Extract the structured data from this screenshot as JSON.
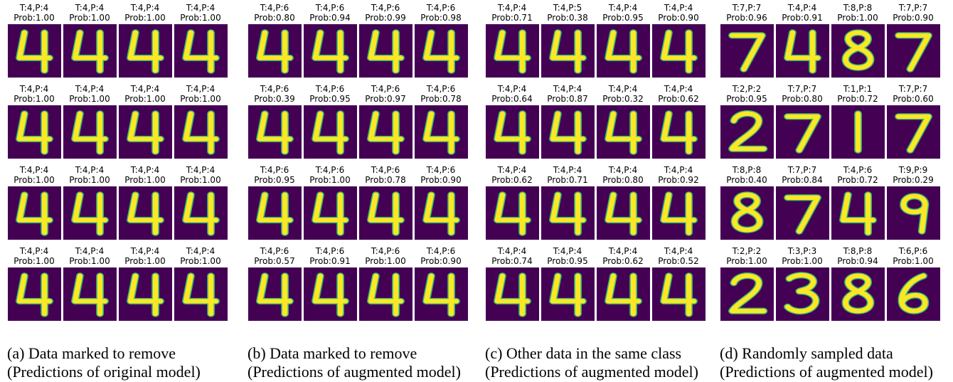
{
  "colors": {
    "background": "#440154",
    "stroke": "#fde725",
    "edge": "#35b779"
  },
  "panels": [
    {
      "caption_line1": "(a) Data marked to remove",
      "caption_line2": "(Predictions of original model)",
      "rows": [
        [
          {
            "t": "T:4,P:4",
            "p": "Prob:1.00",
            "d": "4"
          },
          {
            "t": "T:4,P:4",
            "p": "Prob:1.00",
            "d": "4"
          },
          {
            "t": "T:4,P:4",
            "p": "Prob:1.00",
            "d": "4"
          },
          {
            "t": "T:4,P:4",
            "p": "Prob:1.00",
            "d": "4"
          }
        ],
        [
          {
            "t": "T:4,P:4",
            "p": "Prob:1.00",
            "d": "4"
          },
          {
            "t": "T:4,P:4",
            "p": "Prob:1.00",
            "d": "4"
          },
          {
            "t": "T:4,P:4",
            "p": "Prob:1.00",
            "d": "4"
          },
          {
            "t": "T:4,P:4",
            "p": "Prob:1.00",
            "d": "4"
          }
        ],
        [
          {
            "t": "T:4,P:4",
            "p": "Prob:1.00",
            "d": "4"
          },
          {
            "t": "T:4,P:4",
            "p": "Prob:1.00",
            "d": "4"
          },
          {
            "t": "T:4,P:4",
            "p": "Prob:1.00",
            "d": "4"
          },
          {
            "t": "T:4,P:4",
            "p": "Prob:1.00",
            "d": "4"
          }
        ],
        [
          {
            "t": "T:4,P:4",
            "p": "Prob:1.00",
            "d": "4"
          },
          {
            "t": "T:4,P:4",
            "p": "Prob:1.00",
            "d": "4"
          },
          {
            "t": "T:4,P:4",
            "p": "Prob:1.00",
            "d": "4"
          },
          {
            "t": "T:4,P:4",
            "p": "Prob:1.00",
            "d": "4"
          }
        ]
      ]
    },
    {
      "caption_line1": "(b) Data marked to remove",
      "caption_line2": "(Predictions of augmented model)",
      "rows": [
        [
          {
            "t": "T:4,P:6",
            "p": "Prob:0.80",
            "d": "4"
          },
          {
            "t": "T:4,P:6",
            "p": "Prob:0.94",
            "d": "4"
          },
          {
            "t": "T:4,P:6",
            "p": "Prob:0.99",
            "d": "4"
          },
          {
            "t": "T:4,P:6",
            "p": "Prob:0.98",
            "d": "4"
          }
        ],
        [
          {
            "t": "T:4,P:6",
            "p": "Prob:0.39",
            "d": "4"
          },
          {
            "t": "T:4,P:6",
            "p": "Prob:0.95",
            "d": "4"
          },
          {
            "t": "T:4,P:6",
            "p": "Prob:0.97",
            "d": "4"
          },
          {
            "t": "T:4,P:6",
            "p": "Prob:0.78",
            "d": "4"
          }
        ],
        [
          {
            "t": "T:4,P:6",
            "p": "Prob:0.95",
            "d": "4"
          },
          {
            "t": "T:4,P:6",
            "p": "Prob:1.00",
            "d": "4"
          },
          {
            "t": "T:4,P:6",
            "p": "Prob:0.78",
            "d": "4"
          },
          {
            "t": "T:4,P:6",
            "p": "Prob:0.90",
            "d": "4"
          }
        ],
        [
          {
            "t": "T:4,P:6",
            "p": "Prob:0.57",
            "d": "4"
          },
          {
            "t": "T:4,P:6",
            "p": "Prob:0.91",
            "d": "4"
          },
          {
            "t": "T:4,P:6",
            "p": "Prob:1.00",
            "d": "4"
          },
          {
            "t": "T:4,P:6",
            "p": "Prob:0.90",
            "d": "4"
          }
        ]
      ]
    },
    {
      "caption_line1": "(c) Other data in the same class",
      "caption_line2": "(Predictions of augmented model)",
      "rows": [
        [
          {
            "t": "T:4,P:4",
            "p": "Prob:0.71",
            "d": "4"
          },
          {
            "t": "T:4,P:5",
            "p": "Prob:0.38",
            "d": "4"
          },
          {
            "t": "T:4,P:4",
            "p": "Prob:0.95",
            "d": "4"
          },
          {
            "t": "T:4,P:4",
            "p": "Prob:0.90",
            "d": "4"
          }
        ],
        [
          {
            "t": "T:4,P:4",
            "p": "Prob:0.64",
            "d": "4"
          },
          {
            "t": "T:4,P:4",
            "p": "Prob:0.87",
            "d": "4"
          },
          {
            "t": "T:4,P:4",
            "p": "Prob:0.32",
            "d": "4"
          },
          {
            "t": "T:4,P:4",
            "p": "Prob:0.62",
            "d": "4"
          }
        ],
        [
          {
            "t": "T:4,P:4",
            "p": "Prob:0.62",
            "d": "4"
          },
          {
            "t": "T:4,P:4",
            "p": "Prob:0.71",
            "d": "4"
          },
          {
            "t": "T:4,P:4",
            "p": "Prob:0.80",
            "d": "4"
          },
          {
            "t": "T:4,P:4",
            "p": "Prob:0.92",
            "d": "4"
          }
        ],
        [
          {
            "t": "T:4,P:4",
            "p": "Prob:0.74",
            "d": "4"
          },
          {
            "t": "T:4,P:4",
            "p": "Prob:0.95",
            "d": "4"
          },
          {
            "t": "T:4,P:4",
            "p": "Prob:0.62",
            "d": "4"
          },
          {
            "t": "T:4,P:4",
            "p": "Prob:0.52",
            "d": "4"
          }
        ]
      ]
    },
    {
      "caption_line1": "(d) Randomly sampled data",
      "caption_line2": "(Predictions of augmented model)",
      "rows": [
        [
          {
            "t": "T:7,P:7",
            "p": "Prob:0.96",
            "d": "7"
          },
          {
            "t": "T:4,P:4",
            "p": "Prob:0.91",
            "d": "4"
          },
          {
            "t": "T:8,P:8",
            "p": "Prob:1.00",
            "d": "8"
          },
          {
            "t": "T:7,P:7",
            "p": "Prob:0.90",
            "d": "7"
          }
        ],
        [
          {
            "t": "T:2,P:2",
            "p": "Prob:0.95",
            "d": "2"
          },
          {
            "t": "T:7,P:7",
            "p": "Prob:0.80",
            "d": "7"
          },
          {
            "t": "T:1,P:1",
            "p": "Prob:0.72",
            "d": "1"
          },
          {
            "t": "T:7,P:7",
            "p": "Prob:0.60",
            "d": "7"
          }
        ],
        [
          {
            "t": "T:8,P:8",
            "p": "Prob:0.40",
            "d": "8"
          },
          {
            "t": "T:7,P:7",
            "p": "Prob:0.84",
            "d": "7"
          },
          {
            "t": "T:4,P:6",
            "p": "Prob:0.72",
            "d": "4"
          },
          {
            "t": "T:9,P:9",
            "p": "Prob:0.29",
            "d": "9"
          }
        ],
        [
          {
            "t": "T:2,P:2",
            "p": "Prob:1.00",
            "d": "2"
          },
          {
            "t": "T:3,P:3",
            "p": "Prob:1.00",
            "d": "3"
          },
          {
            "t": "T:8,P:8",
            "p": "Prob:0.94",
            "d": "8"
          },
          {
            "t": "T:6,P:6",
            "p": "Prob:1.00",
            "d": "6"
          }
        ]
      ]
    }
  ]
}
